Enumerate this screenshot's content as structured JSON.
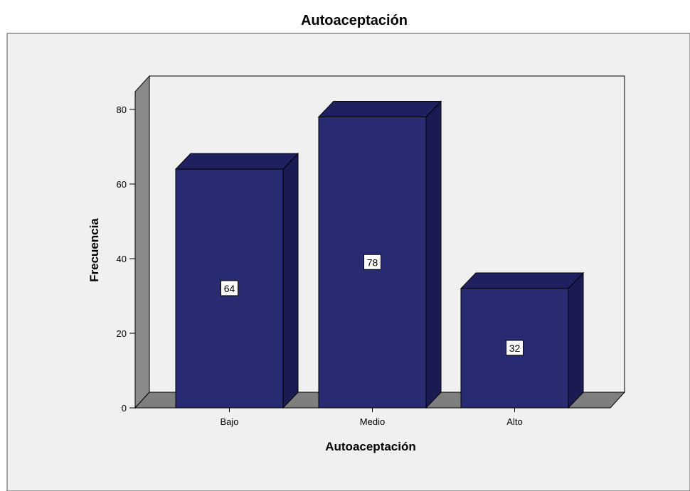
{
  "chart_data": {
    "type": "bar",
    "title": "Autoaceptación",
    "xlabel": "Autoaceptación",
    "ylabel": "Frecuencia",
    "categories": [
      "Bajo",
      "Medio",
      "Alto"
    ],
    "values": [
      64,
      78,
      32
    ],
    "data_labels": [
      "64",
      "78",
      "32"
    ],
    "ylim": [
      0,
      88
    ],
    "yticks": [
      0,
      20,
      40,
      60,
      80
    ],
    "grid": false,
    "three_d": true
  },
  "colors": {
    "background": "#f0f0f0",
    "bar_front": "#282a72",
    "bar_top": "#1e2060",
    "bar_side": "#1a1b52",
    "wall": "#8a8a8a",
    "floor": "#7f7f7f"
  }
}
